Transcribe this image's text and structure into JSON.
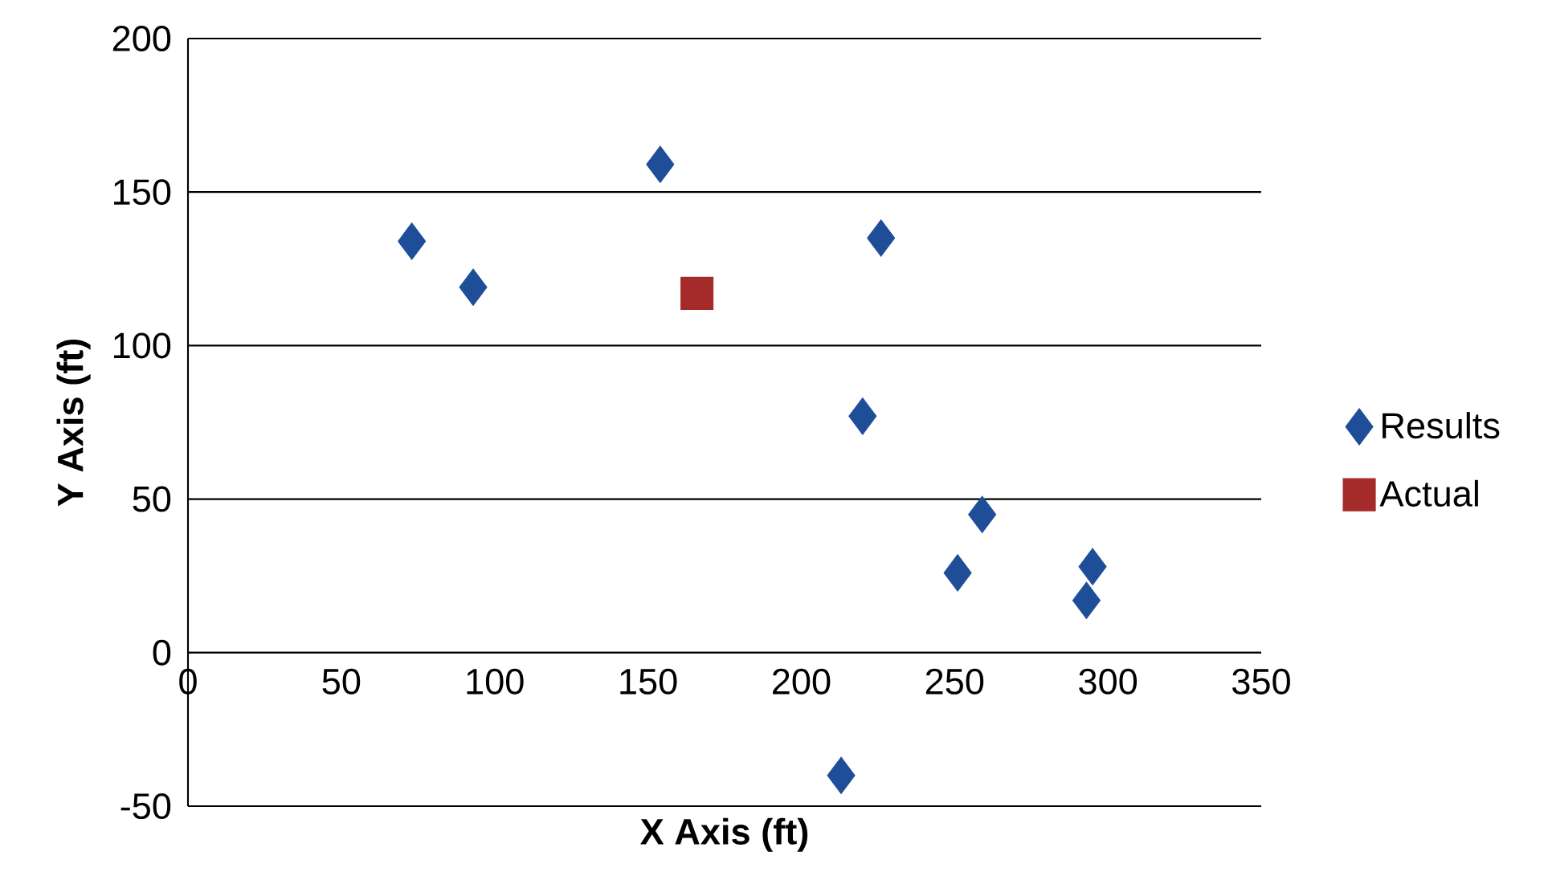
{
  "chart_data": {
    "type": "scatter",
    "xlabel": "X Axis (ft)",
    "ylabel": "Y Axis (ft)",
    "series": [
      {
        "name": "Results",
        "color": "#1f4e99",
        "marker": "diamond",
        "x": [
          73,
          93,
          154,
          226,
          220,
          259,
          251,
          295,
          293,
          213
        ],
        "values": [
          134,
          119,
          159,
          135,
          77,
          45,
          26,
          28,
          17,
          -40
        ]
      },
      {
        "name": "Actual",
        "color": "#a52a2a",
        "marker": "square",
        "x": [
          166
        ],
        "values": [
          117
        ]
      }
    ],
    "xlim": [
      0,
      350
    ],
    "xticks": [
      0,
      50,
      100,
      150,
      200,
      250,
      300,
      350
    ],
    "ylim": [
      -50,
      200
    ],
    "yticks": [
      -50,
      0,
      50,
      100,
      150,
      200
    ],
    "grid": "y",
    "legend": "right"
  }
}
